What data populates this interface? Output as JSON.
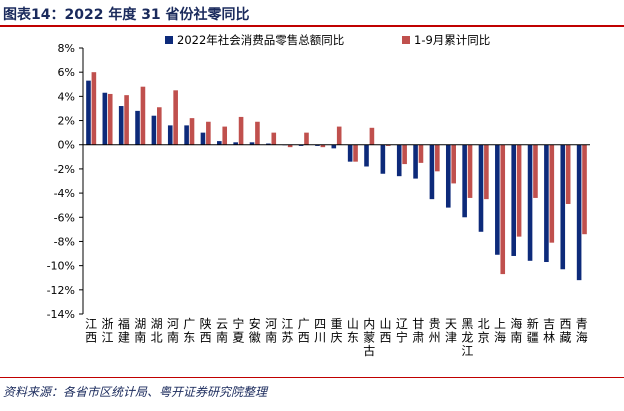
{
  "figure_title": "图表14：2022 年度 31 省份社零同比",
  "source_note": "资料来源：各省市区统计局、粤开证券研究院整理",
  "colors": {
    "series1": "#0d2a7a",
    "series2": "#c0504d",
    "title": "#1a2a5c",
    "rule": "#c00000"
  },
  "chart_data": {
    "type": "bar",
    "categories": [
      "江西",
      "浙江",
      "福建",
      "湖南",
      "湖北",
      "河南",
      "广东",
      "陕西",
      "云南",
      "宁夏",
      "安徽",
      "河南",
      "江苏",
      "广西",
      "四川",
      "重庆",
      "山东",
      "内蒙古",
      "山西",
      "辽宁",
      "甘肃",
      "贵州",
      "天津",
      "黑龙江",
      "北京",
      "上海",
      "海南",
      "新疆",
      "吉林",
      "西藏",
      "青海"
    ],
    "series": [
      {
        "name": "2022年社会消费品零售总额同比",
        "values": [
          5.3,
          4.3,
          3.2,
          2.8,
          2.4,
          1.6,
          1.6,
          1.0,
          0.3,
          0.2,
          0.2,
          0.1,
          0.0,
          -0.1,
          -0.1,
          -0.3,
          -1.4,
          -1.8,
          -2.4,
          -2.6,
          -2.8,
          -4.5,
          -5.2,
          -6.0,
          -7.2,
          -9.1,
          -9.2,
          -9.6,
          -9.7,
          -10.3,
          -11.2
        ]
      },
      {
        "name": "1-9月累计同比",
        "values": [
          6.0,
          4.2,
          4.1,
          4.8,
          3.1,
          4.5,
          2.2,
          1.9,
          1.5,
          2.3,
          1.9,
          1.0,
          -0.2,
          1.0,
          -0.2,
          1.5,
          -1.4,
          1.4,
          -0.1,
          -1.6,
          -1.5,
          -2.2,
          -3.2,
          -4.4,
          -4.5,
          -10.7,
          -7.6,
          -4.4,
          -8.1,
          -4.9,
          -7.4
        ]
      }
    ],
    "ylim": [
      -14,
      8
    ],
    "yticks": [
      "8%",
      "6%",
      "4%",
      "2%",
      "0%",
      "-2%",
      "-4%",
      "-6%",
      "-8%",
      "-10%",
      "-12%",
      "-14%"
    ],
    "ytick_values": [
      8,
      6,
      4,
      2,
      0,
      -2,
      -4,
      -6,
      -8,
      -10,
      -12,
      -14
    ],
    "legend_position": "top",
    "grid": false
  }
}
